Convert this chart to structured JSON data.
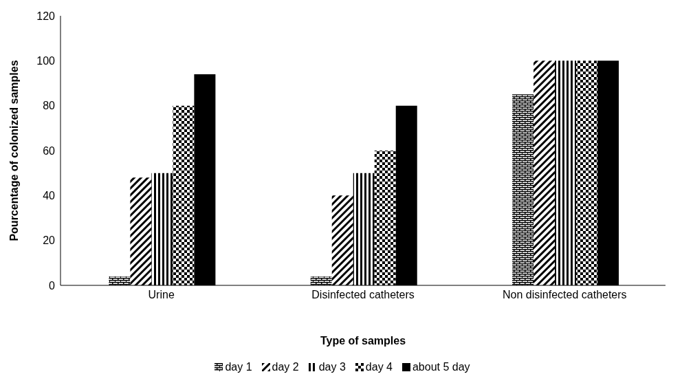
{
  "chart_data": {
    "type": "bar",
    "xlabel": "Type of samples",
    "ylabel": "Pourcentage of colonized samples",
    "categories": [
      "Urine",
      "Disinfected catheters",
      "Non disinfected catheters"
    ],
    "series": [
      {
        "name": "day 1",
        "color": "#000000",
        "values": [
          4,
          4,
          85
        ]
      },
      {
        "name": "day 2",
        "color": "#000000",
        "values": [
          48,
          40,
          100
        ]
      },
      {
        "name": "day 3",
        "color": "#000000",
        "values": [
          50,
          50,
          100
        ]
      },
      {
        "name": "day 4",
        "color": "#000000",
        "values": [
          80,
          60,
          100
        ]
      },
      {
        "name": "about 5 day",
        "color": "#000000",
        "values": [
          94,
          80,
          100
        ]
      }
    ],
    "ylim": [
      0,
      120
    ],
    "yticks": [
      0,
      20,
      40,
      60,
      80,
      100,
      120
    ],
    "legend": "bottom"
  }
}
